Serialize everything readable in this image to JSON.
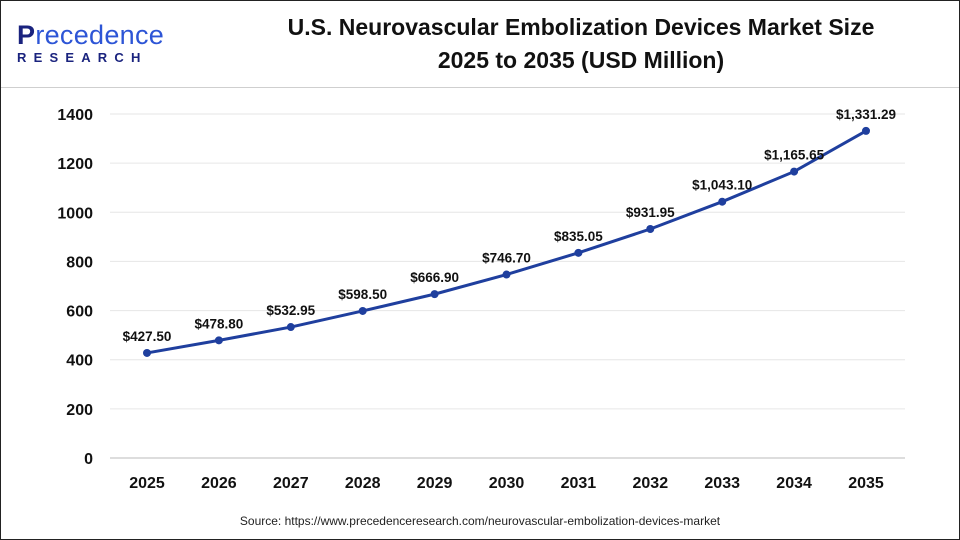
{
  "logo": {
    "top": "Precedence",
    "bottom": "RESEARCH"
  },
  "title_lines": [
    "U.S. Neurovascular Embolization Devices Market Size",
    "2025 to 2035 (USD Million)"
  ],
  "source": "Source: https://www.precedenceresearch.com/neurovascular-embolization-devices-market",
  "chart_data": {
    "type": "line",
    "title": "U.S. Neurovascular Embolization Devices Market Size 2025 to 2035 (USD Million)",
    "categories": [
      "2025",
      "2026",
      "2027",
      "2028",
      "2029",
      "2030",
      "2031",
      "2032",
      "2033",
      "2034",
      "2035"
    ],
    "values": [
      427.5,
      478.8,
      532.95,
      598.5,
      666.9,
      746.7,
      835.05,
      931.95,
      1043.1,
      1165.65,
      1331.29
    ],
    "data_labels": [
      "$427.50",
      "$478.80",
      "$532.95",
      "$598.50",
      "$666.90",
      "$746.70",
      "$835.05",
      "$931.95",
      "$1,043.10",
      "$1,165.65",
      "$1,331.29"
    ],
    "yticks": [
      0,
      200,
      400,
      600,
      800,
      1000,
      1200,
      1400
    ],
    "ylim": [
      0,
      1400
    ],
    "grid": true,
    "line_color": "#1f3f9e",
    "xlabel": "",
    "ylabel": ""
  }
}
